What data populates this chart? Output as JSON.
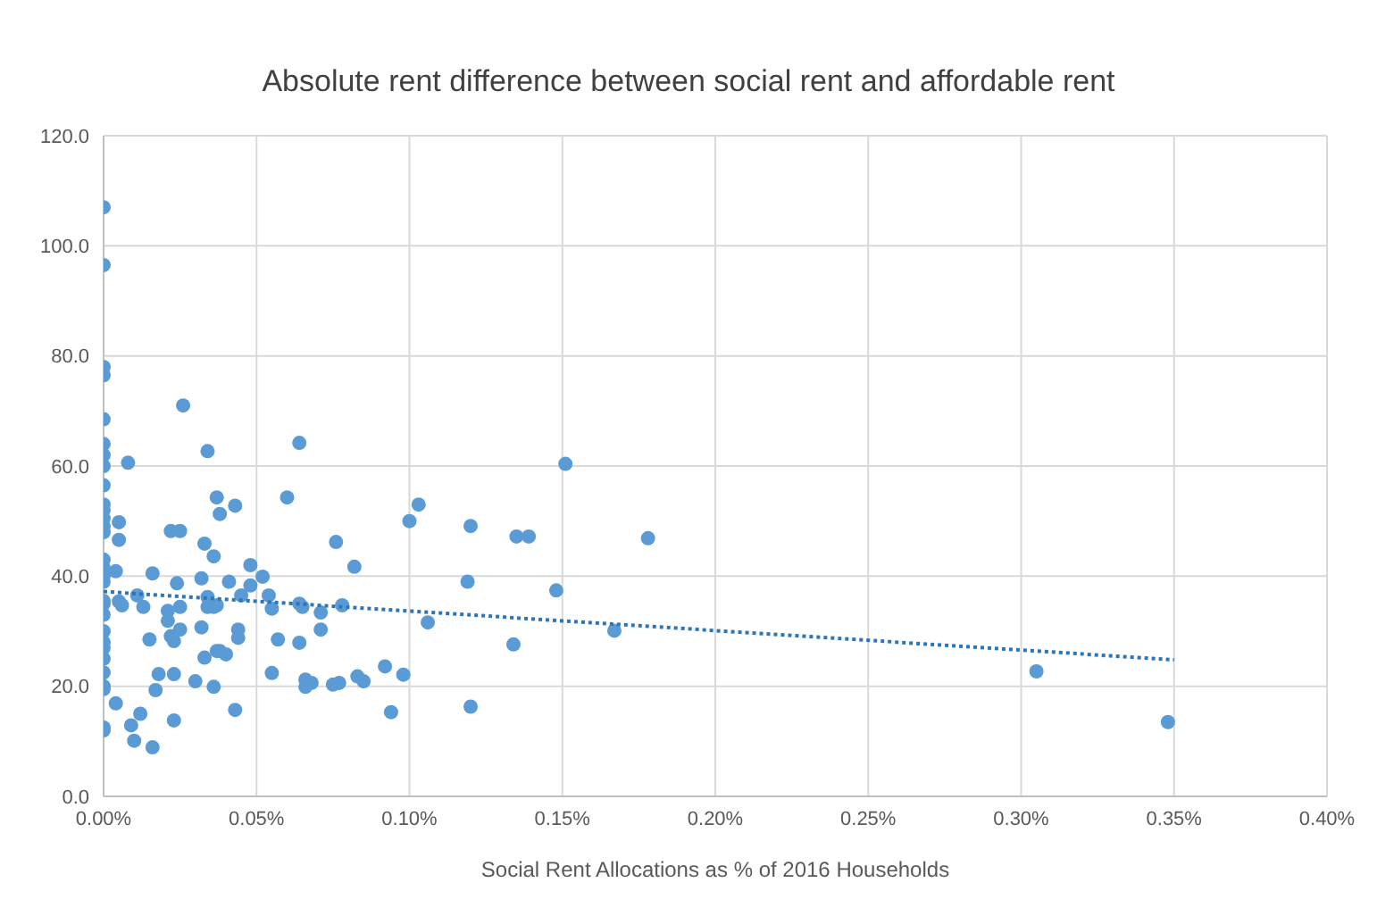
{
  "chart_data": {
    "type": "scatter",
    "title": "Absolute rent difference between social rent and affordable rent",
    "xlabel": "Social Rent Allocations as % of 2016 Households",
    "xlim": [
      0,
      0.4
    ],
    "xticks": [
      {
        "value": 0,
        "label": "0.00%"
      },
      {
        "value": 0.05,
        "label": "0.05%"
      },
      {
        "value": 0.1,
        "label": "0.10%"
      },
      {
        "value": 0.15,
        "label": "0.15%"
      },
      {
        "value": 0.2,
        "label": "0.20%"
      },
      {
        "value": 0.25,
        "label": "0.25%"
      },
      {
        "value": 0.3,
        "label": "0.30%"
      },
      {
        "value": 0.35,
        "label": "0.35%"
      },
      {
        "value": 0.4,
        "label": "0.40%"
      }
    ],
    "ylim": [
      0,
      120
    ],
    "yticks": [
      {
        "value": 0,
        "label": "0.0"
      },
      {
        "value": 20,
        "label": "20.0"
      },
      {
        "value": 40,
        "label": "40.0"
      },
      {
        "value": 60,
        "label": "60.0"
      },
      {
        "value": 80,
        "label": "80.0"
      },
      {
        "value": 100,
        "label": "100.0"
      },
      {
        "value": 120,
        "label": "120.0"
      }
    ],
    "grid": true,
    "marker": "circle",
    "series": [
      {
        "color": "#5b9bd5",
        "x": [
          0,
          0,
          0,
          0,
          0,
          0,
          0,
          0,
          0,
          0,
          0,
          0,
          0,
          0,
          0,
          0,
          0,
          0,
          0,
          0,
          0,
          0,
          0,
          0,
          0,
          0,
          0,
          0,
          0,
          0,
          0.008,
          0.026,
          0.034,
          0.064,
          0.005,
          0.005,
          0.004,
          0.005,
          0.006,
          0.011,
          0.013,
          0.016,
          0.015,
          0.018,
          0.017,
          0.004,
          0.009,
          0.012,
          0.01,
          0.016,
          0.022,
          0.025,
          0.024,
          0.021,
          0.025,
          0.021,
          0.022,
          0.023,
          0.025,
          0.023,
          0.023,
          0.03,
          0.032,
          0.032,
          0.033,
          0.036,
          0.037,
          0.038,
          0.043,
          0.034,
          0.036,
          0.034,
          0.037,
          0.041,
          0.033,
          0.037,
          0.038,
          0.04,
          0.036,
          0.043,
          0.045,
          0.044,
          0.044,
          0.048,
          0.048,
          0.052,
          0.054,
          0.055,
          0.057,
          0.055,
          0.06,
          0.064,
          0.065,
          0.064,
          0.066,
          0.066,
          0.068,
          0.071,
          0.071,
          0.076,
          0.078,
          0.075,
          0.077,
          0.082,
          0.083,
          0.085,
          0.092,
          0.098,
          0.094,
          0.1,
          0.103,
          0.106,
          0.12,
          0.119,
          0.12,
          0.135,
          0.139,
          0.134,
          0.151,
          0.148,
          0.167,
          0.178,
          0.305,
          0.348
        ],
        "values": [
          107,
          96.5,
          78,
          76.5,
          68.5,
          64,
          62,
          60,
          56.5,
          53,
          52,
          50.5,
          49,
          48,
          43,
          41.5,
          40,
          39,
          35.5,
          35,
          33,
          30,
          28,
          27,
          25,
          22.5,
          20,
          19.5,
          12.5,
          12,
          60.6,
          71,
          62.7,
          64.2,
          49.8,
          46.6,
          40.9,
          35.4,
          34.7,
          36.5,
          34.4,
          40.5,
          28.5,
          22.2,
          19.3,
          16.9,
          12.9,
          15,
          10.1,
          8.9,
          48.2,
          48.2,
          38.7,
          33.7,
          34.4,
          31.9,
          29.1,
          28.2,
          30.3,
          22.2,
          13.8,
          20.9,
          30.7,
          39.6,
          45.9,
          43.6,
          54.3,
          51.3,
          52.8,
          36.2,
          34.4,
          34.4,
          34.7,
          39,
          25.2,
          26.4,
          26.4,
          25.8,
          19.9,
          15.7,
          36.5,
          30.3,
          28.8,
          42,
          38.3,
          39.9,
          36.5,
          34.1,
          28.5,
          22.4,
          54.3,
          35,
          34.4,
          27.9,
          21.2,
          19.9,
          20.6,
          33.4,
          30.3,
          46.2,
          34.7,
          20.3,
          20.6,
          41.7,
          21.8,
          20.9,
          23.6,
          22.1,
          15.3,
          50,
          53,
          31.6,
          49.1,
          39,
          16.3,
          47.2,
          47.2,
          27.6,
          60.4,
          37.4,
          30.1,
          46.9,
          22.7,
          13.5
        ]
      },
      {
        "type": "line",
        "color": "#2e75b6",
        "line_style": "dotted",
        "marker": "none",
        "x": [
          0,
          0.35
        ],
        "values": [
          37.2,
          24.8
        ]
      }
    ]
  }
}
